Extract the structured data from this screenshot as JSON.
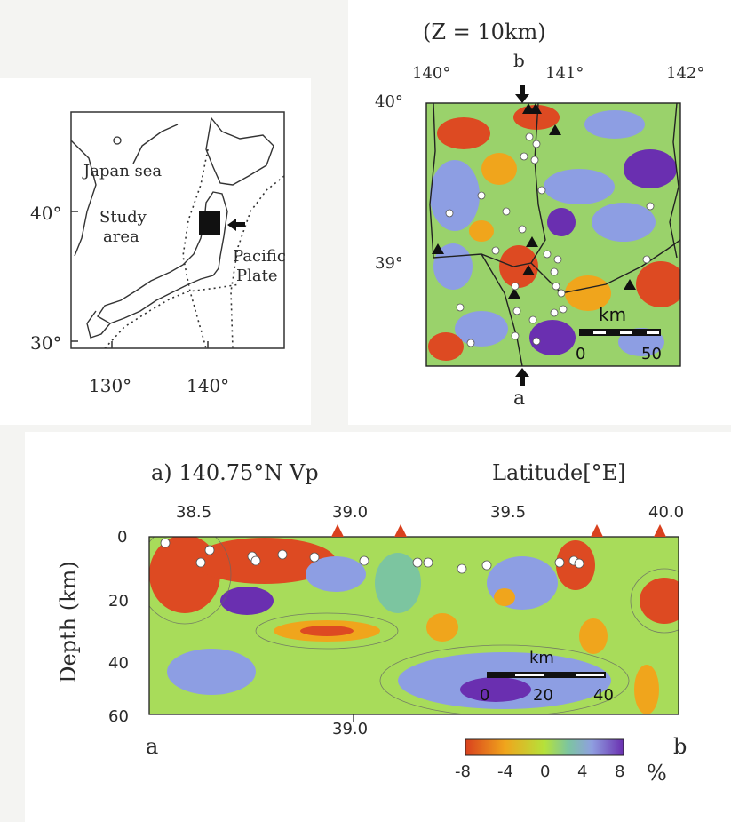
{
  "index_map": {
    "lon_labels": [
      "130°",
      "140°"
    ],
    "lat_labels": [
      "40°",
      "30°"
    ],
    "japan_sea": "Japan sea",
    "study_area": [
      "Study",
      "area"
    ],
    "pacific_plate": [
      "Pacific",
      "Plate"
    ]
  },
  "plan_map": {
    "title": "(Z = 10km)",
    "lon_labels": [
      "140°",
      "141°",
      "142°"
    ],
    "lat_labels": [
      "40°",
      "39°"
    ],
    "section_top": "b",
    "section_bottom": "a",
    "scale_unit": "km",
    "scale_ticks": [
      "0",
      "50"
    ]
  },
  "cross_section": {
    "title": "a) 140.75°N  Vp",
    "axis_title": "Latitude[°E]",
    "x_ticks": [
      "38.5",
      "39.0",
      "39.5",
      "40.0"
    ],
    "y_ticks": [
      "0",
      "20",
      "40",
      "60"
    ],
    "y_axis_label": "Depth (km)",
    "x_mid_tick": "39.0",
    "end_left": "a",
    "end_right": "b",
    "scale_unit": "km",
    "scale_ticks": [
      "0",
      "20",
      "40"
    ]
  },
  "colorbar": {
    "ticks": [
      "-8",
      "-4",
      "0",
      "4",
      "8"
    ],
    "unit": "%",
    "colors": [
      "#d9411e",
      "#f0a51c",
      "#b5e23a",
      "#7cc5a0",
      "#8f9fe0",
      "#6a2fb0"
    ]
  }
}
